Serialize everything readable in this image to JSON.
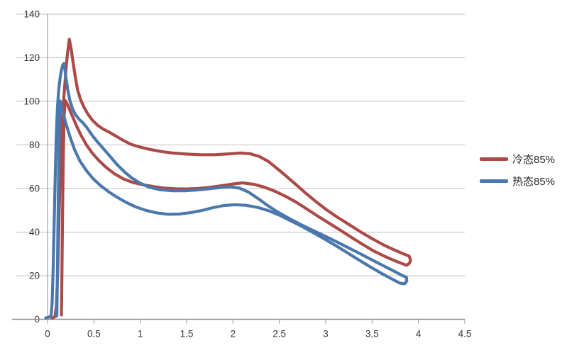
{
  "chart_data": {
    "type": "line",
    "title": "",
    "xlabel": "",
    "ylabel": "",
    "xlim": [
      0,
      4.5
    ],
    "ylim": [
      0,
      140
    ],
    "grid": "horizontal",
    "legend_position": "right",
    "xtick_values": [
      0,
      0.5,
      1,
      1.5,
      2,
      2.5,
      3,
      3.5,
      4,
      4.5
    ],
    "xtick_labels": [
      "0",
      "0.5",
      "1",
      "1.5",
      "2",
      "2.5",
      "3",
      "3.5",
      "4",
      "4.5"
    ],
    "ytick_values": [
      0,
      20,
      40,
      60,
      80,
      100,
      120,
      140
    ],
    "ytick_labels": [
      "0",
      "20",
      "40",
      "60",
      "80",
      "100",
      "120",
      "140"
    ],
    "colors": {
      "background": "#ffffff",
      "gridline": "#c0c0c0",
      "axis": "#8f8f8f",
      "tick_label": "#383838"
    },
    "series": [
      {
        "name": "冷态85%",
        "color": "#ab4a47",
        "shape": "hysteresis-loop",
        "peak": [
          0.235,
          128.5
        ],
        "points": [
          [
            0.05,
            0.5
          ],
          [
            0.08,
            1.2
          ],
          [
            0.095,
            6
          ],
          [
            0.11,
            22
          ],
          [
            0.125,
            48
          ],
          [
            0.14,
            72
          ],
          [
            0.155,
            88
          ],
          [
            0.17,
            99
          ],
          [
            0.185,
            107
          ],
          [
            0.2,
            115
          ],
          [
            0.215,
            122
          ],
          [
            0.235,
            128.5
          ],
          [
            0.255,
            124
          ],
          [
            0.275,
            118
          ],
          [
            0.3,
            111
          ],
          [
            0.325,
            105
          ],
          [
            0.355,
            101
          ],
          [
            0.39,
            97.5
          ],
          [
            0.43,
            94.5
          ],
          [
            0.48,
            91.5
          ],
          [
            0.54,
            89
          ],
          [
            0.6,
            87.3
          ],
          [
            0.66,
            86
          ],
          [
            0.74,
            84
          ],
          [
            0.82,
            82
          ],
          [
            0.9,
            80.3
          ],
          [
            1.0,
            79
          ],
          [
            1.1,
            78
          ],
          [
            1.22,
            77
          ],
          [
            1.35,
            76.3
          ],
          [
            1.5,
            75.8
          ],
          [
            1.65,
            75.5
          ],
          [
            1.8,
            75.5
          ],
          [
            1.95,
            75.9
          ],
          [
            2.08,
            76.3
          ],
          [
            2.18,
            76
          ],
          [
            2.28,
            74.8
          ],
          [
            2.38,
            72.5
          ],
          [
            2.48,
            69
          ],
          [
            2.58,
            65.5
          ],
          [
            2.68,
            61.8
          ],
          [
            2.78,
            58
          ],
          [
            2.88,
            54.5
          ],
          [
            3.0,
            50.5
          ],
          [
            3.12,
            47
          ],
          [
            3.25,
            43.5
          ],
          [
            3.38,
            40
          ],
          [
            3.5,
            37
          ],
          [
            3.62,
            34.2
          ],
          [
            3.74,
            31.8
          ],
          [
            3.84,
            30
          ],
          [
            3.9,
            29
          ],
          [
            3.915,
            27
          ],
          [
            3.9,
            25.6
          ],
          [
            3.87,
            24.8
          ],
          [
            3.76,
            26.6
          ],
          [
            3.64,
            28.8
          ],
          [
            3.52,
            31.3
          ],
          [
            3.4,
            34.3
          ],
          [
            3.28,
            37.5
          ],
          [
            3.16,
            40.8
          ],
          [
            3.04,
            44
          ],
          [
            2.92,
            47.2
          ],
          [
            2.8,
            50.5
          ],
          [
            2.68,
            53.8
          ],
          [
            2.56,
            56.6
          ],
          [
            2.45,
            58.8
          ],
          [
            2.34,
            60.6
          ],
          [
            2.22,
            62
          ],
          [
            2.1,
            62.6
          ],
          [
            1.98,
            62
          ],
          [
            1.86,
            61.2
          ],
          [
            1.74,
            60.5
          ],
          [
            1.62,
            60
          ],
          [
            1.5,
            59.8
          ],
          [
            1.38,
            59.9
          ],
          [
            1.26,
            60.2
          ],
          [
            1.14,
            60.9
          ],
          [
            1.02,
            61.8
          ],
          [
            0.92,
            62.8
          ],
          [
            0.82,
            64.4
          ],
          [
            0.72,
            66.8
          ],
          [
            0.63,
            69.8
          ],
          [
            0.55,
            73
          ],
          [
            0.48,
            76.4
          ],
          [
            0.42,
            80
          ],
          [
            0.36,
            84.5
          ],
          [
            0.31,
            89
          ],
          [
            0.27,
            93
          ],
          [
            0.235,
            96.5
          ],
          [
            0.21,
            99
          ],
          [
            0.19,
            100.4
          ],
          [
            0.178,
            93
          ],
          [
            0.17,
            75
          ],
          [
            0.162,
            50
          ],
          [
            0.155,
            22
          ],
          [
            0.15,
            2
          ]
        ]
      },
      {
        "name": "热态85%",
        "color": "#4a78ad",
        "shape": "hysteresis-loop",
        "peak": [
          0.178,
          117.4
        ],
        "points": [
          [
            -0.02,
            0.6
          ],
          [
            0.02,
            1
          ],
          [
            0.04,
            2
          ],
          [
            0.05,
            8
          ],
          [
            0.06,
            22
          ],
          [
            0.072,
            45
          ],
          [
            0.084,
            68
          ],
          [
            0.096,
            86
          ],
          [
            0.108,
            98
          ],
          [
            0.12,
            105
          ],
          [
            0.135,
            110.5
          ],
          [
            0.15,
            114.5
          ],
          [
            0.165,
            116.8
          ],
          [
            0.178,
            117.4
          ],
          [
            0.195,
            112
          ],
          [
            0.215,
            106
          ],
          [
            0.24,
            100.5
          ],
          [
            0.27,
            96.5
          ],
          [
            0.3,
            94
          ],
          [
            0.34,
            91.8
          ],
          [
            0.38,
            90.2
          ],
          [
            0.43,
            87.6
          ],
          [
            0.48,
            84.5
          ],
          [
            0.54,
            81.3
          ],
          [
            0.6,
            78.4
          ],
          [
            0.67,
            75
          ],
          [
            0.75,
            71
          ],
          [
            0.83,
            67.6
          ],
          [
            0.91,
            64.8
          ],
          [
            1.0,
            62.4
          ],
          [
            1.1,
            60.6
          ],
          [
            1.22,
            59.4
          ],
          [
            1.35,
            59
          ],
          [
            1.48,
            59
          ],
          [
            1.6,
            59.3
          ],
          [
            1.72,
            59.8
          ],
          [
            1.85,
            60.4
          ],
          [
            1.97,
            60.8
          ],
          [
            2.07,
            60.2
          ],
          [
            2.17,
            58.3
          ],
          [
            2.27,
            55.4
          ],
          [
            2.37,
            52.3
          ],
          [
            2.48,
            49.3
          ],
          [
            2.6,
            46.4
          ],
          [
            2.73,
            43.5
          ],
          [
            2.86,
            40.8
          ],
          [
            3.0,
            38
          ],
          [
            3.13,
            35.3
          ],
          [
            3.26,
            32.5
          ],
          [
            3.39,
            29.7
          ],
          [
            3.52,
            26.8
          ],
          [
            3.64,
            24.2
          ],
          [
            3.75,
            21.8
          ],
          [
            3.83,
            20
          ],
          [
            3.87,
            19.3
          ],
          [
            3.875,
            17.6
          ],
          [
            3.85,
            16.3
          ],
          [
            3.8,
            16.6
          ],
          [
            3.7,
            18.8
          ],
          [
            3.58,
            21.6
          ],
          [
            3.46,
            24.6
          ],
          [
            3.34,
            27.7
          ],
          [
            3.22,
            30.9
          ],
          [
            3.1,
            34
          ],
          [
            2.98,
            37
          ],
          [
            2.86,
            39.9
          ],
          [
            2.74,
            42.7
          ],
          [
            2.62,
            45.3
          ],
          [
            2.5,
            47.8
          ],
          [
            2.38,
            49.9
          ],
          [
            2.26,
            51.4
          ],
          [
            2.14,
            52.3
          ],
          [
            2.02,
            52.6
          ],
          [
            1.9,
            52.2
          ],
          [
            1.78,
            51.2
          ],
          [
            1.66,
            49.9
          ],
          [
            1.54,
            48.9
          ],
          [
            1.42,
            48.3
          ],
          [
            1.3,
            48.2
          ],
          [
            1.18,
            48.8
          ],
          [
            1.06,
            50
          ],
          [
            0.95,
            51.6
          ],
          [
            0.85,
            53.6
          ],
          [
            0.75,
            56
          ],
          [
            0.66,
            58.5
          ],
          [
            0.57,
            61.4
          ],
          [
            0.49,
            64.6
          ],
          [
            0.42,
            68.2
          ],
          [
            0.35,
            72.6
          ],
          [
            0.29,
            78
          ],
          [
            0.24,
            84
          ],
          [
            0.2,
            89.6
          ],
          [
            0.17,
            94.4
          ],
          [
            0.148,
            98
          ],
          [
            0.135,
            100.2
          ],
          [
            0.127,
            88
          ],
          [
            0.12,
            68
          ],
          [
            0.112,
            42
          ],
          [
            0.105,
            16
          ],
          [
            0.1,
            1.5
          ]
        ]
      }
    ]
  },
  "legend": {
    "items": [
      "冷态85%",
      "热态85%"
    ]
  }
}
